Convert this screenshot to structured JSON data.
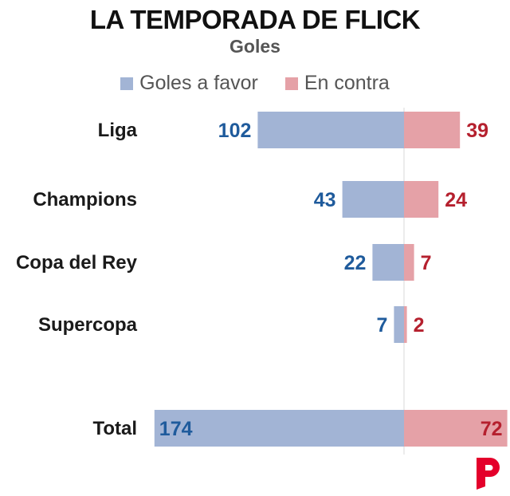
{
  "chart_data": {
    "type": "bar",
    "title": "LA TEMPORADA DE FLICK",
    "subtitle": "Goles",
    "categories": [
      "Liga",
      "Champions",
      "Copa del Rey",
      "Supercopa",
      "Total"
    ],
    "series": [
      {
        "name": "Goles a favor",
        "values": [
          102,
          43,
          22,
          7,
          174
        ],
        "color": "#a2b4d5",
        "label_color": "#1f5b9c"
      },
      {
        "name": "En contra",
        "values": [
          39,
          24,
          7,
          2,
          72
        ],
        "color": "#e5a1a7",
        "label_color": "#b5202e"
      }
    ],
    "legend_position": "top-center",
    "grid": false
  },
  "colors": {
    "center_line": "#d8d8d8",
    "category_text": "#1a1a1a",
    "logo": "#e4002b"
  },
  "logo_icon": "publisher-logo-icon"
}
